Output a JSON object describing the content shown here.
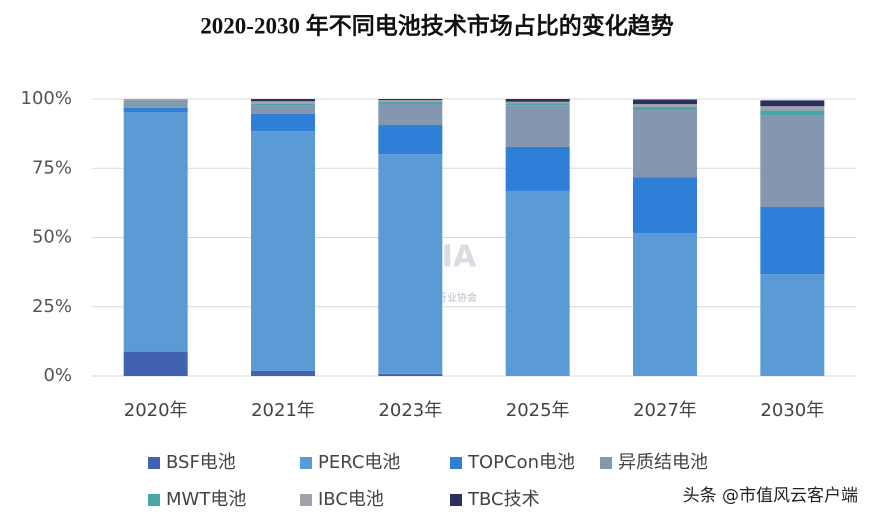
{
  "chart_data": {
    "type": "stacked_bar",
    "title": "2020-2030 年不同电池技术市场占比的变化趋势",
    "categories": [
      "2020年",
      "2021年",
      "2023年",
      "2025年",
      "2027年",
      "2030年"
    ],
    "series": [
      {
        "name": "BSF电池",
        "color": "#4162b0",
        "values": [
          8.8,
          1.9,
          0.8,
          0,
          0,
          0
        ]
      },
      {
        "name": "PERC电池",
        "color": "#5b9bd5",
        "values": [
          86.5,
          86.5,
          79.3,
          66.8,
          51.6,
          36.8
        ]
      },
      {
        "name": "TOPCon电池",
        "color": "#2f7fd8",
        "values": [
          1.5,
          6.2,
          10.5,
          15.9,
          20.2,
          24.2
        ]
      },
      {
        "name": "异质结电池",
        "color": "#8497b0",
        "values": [
          2.0,
          3.0,
          7.6,
          15.1,
          24.2,
          32.9
        ]
      },
      {
        "name": "MWT电池",
        "color": "#4aa6a6",
        "values": [
          0.5,
          0.6,
          0.8,
          0.7,
          1.2,
          2.0
        ]
      },
      {
        "name": "IBC电池",
        "color": "#a49fab",
        "values": [
          0.7,
          1.0,
          0.6,
          0.5,
          1.0,
          1.5
        ]
      },
      {
        "name": "TBC技术",
        "color": "#2b2f5e",
        "values": [
          0,
          0.8,
          0.4,
          1.0,
          1.6,
          2.1
        ]
      }
    ],
    "ylim": [
      0,
      100
    ],
    "yticks": [
      {
        "value": 0,
        "label": "0%"
      },
      {
        "value": 25,
        "label": "25%"
      },
      {
        "value": 50,
        "label": "50%"
      },
      {
        "value": 75,
        "label": "75%"
      },
      {
        "value": 100,
        "label": "100%"
      }
    ],
    "grid": true,
    "logo": "CPIA",
    "logo_subtitle": "中国光伏行业协会",
    "watermark": "头条 @市值风云客户端"
  }
}
